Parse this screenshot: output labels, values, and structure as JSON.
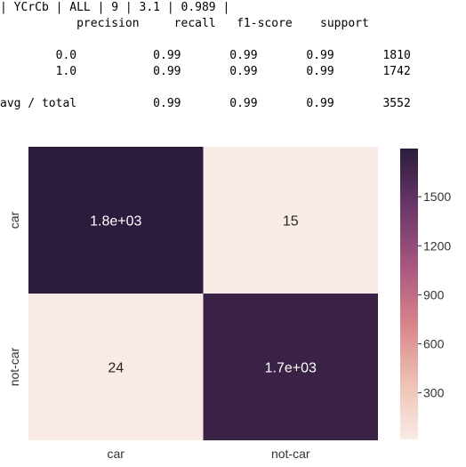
{
  "report": {
    "header": "| YCrCb | ALL | 9 | 3.1 | 0.989 |",
    "columns": [
      "precision",
      "recall",
      "f1-score",
      "support"
    ],
    "rows": [
      {
        "label": "0.0",
        "precision": "0.99",
        "recall": "0.99",
        "f1": "0.99",
        "support": "1810"
      },
      {
        "label": "1.0",
        "precision": "0.99",
        "recall": "0.99",
        "f1": "0.99",
        "support": "1742"
      }
    ],
    "total": {
      "label": "avg / total",
      "precision": "0.99",
      "recall": "0.99",
      "f1": "0.99",
      "support": "3552"
    }
  },
  "chart_data": {
    "type": "heatmap",
    "x_categories": [
      "car",
      "not-car"
    ],
    "y_categories": [
      "car",
      "not-car"
    ],
    "values": [
      [
        1795,
        15
      ],
      [
        24,
        1718
      ]
    ],
    "annotations": [
      [
        "1.8e+03",
        "15"
      ],
      [
        "24",
        "1.7e+03"
      ]
    ],
    "colorbar": {
      "ticks": [
        300,
        600,
        900,
        1200,
        1500
      ],
      "tick_labels": [
        "300",
        "600",
        "900",
        "1200",
        "1500"
      ],
      "range": [
        15,
        1795
      ]
    },
    "colors": {
      "low": "#f9ebe6",
      "high": "#2b1c3d"
    }
  }
}
